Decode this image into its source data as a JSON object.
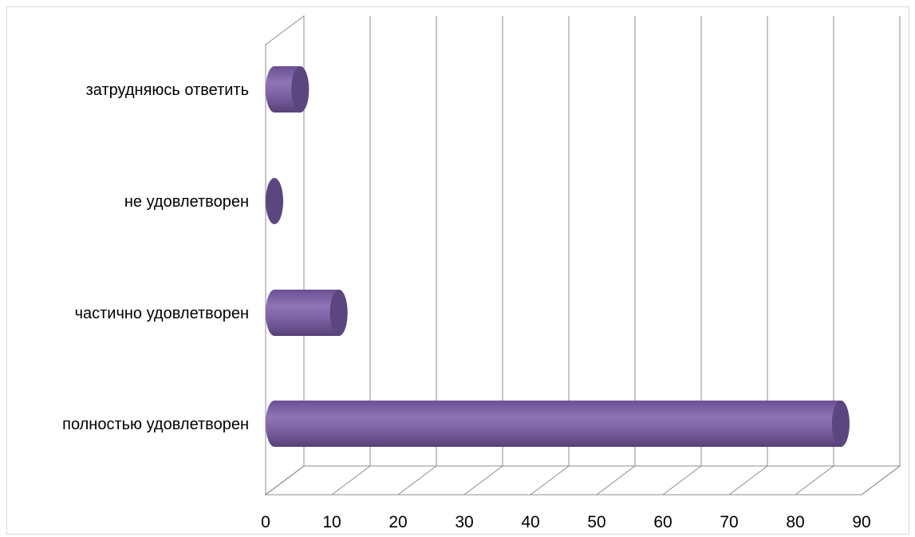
{
  "chart_data": {
    "type": "bar",
    "orientation": "horizontal",
    "style": "3d-cylinder",
    "categories": [
      "полностью удовлетворен",
      "частично удовлетворен",
      "не удовлетворен",
      "затрудняюсь ответить"
    ],
    "values": [
      88,
      10,
      0,
      4
    ],
    "xlim": [
      0,
      90
    ],
    "xticks": [
      0,
      10,
      20,
      30,
      40,
      50,
      60,
      70,
      80,
      90
    ],
    "title": "",
    "xlabel": "",
    "ylabel": "",
    "grid": true,
    "legend": "none",
    "colors": {
      "bar_side": "#7e62a3",
      "bar_end": "#5b4680",
      "grid": "#8c8c8c",
      "axis_text": "#000000"
    }
  }
}
